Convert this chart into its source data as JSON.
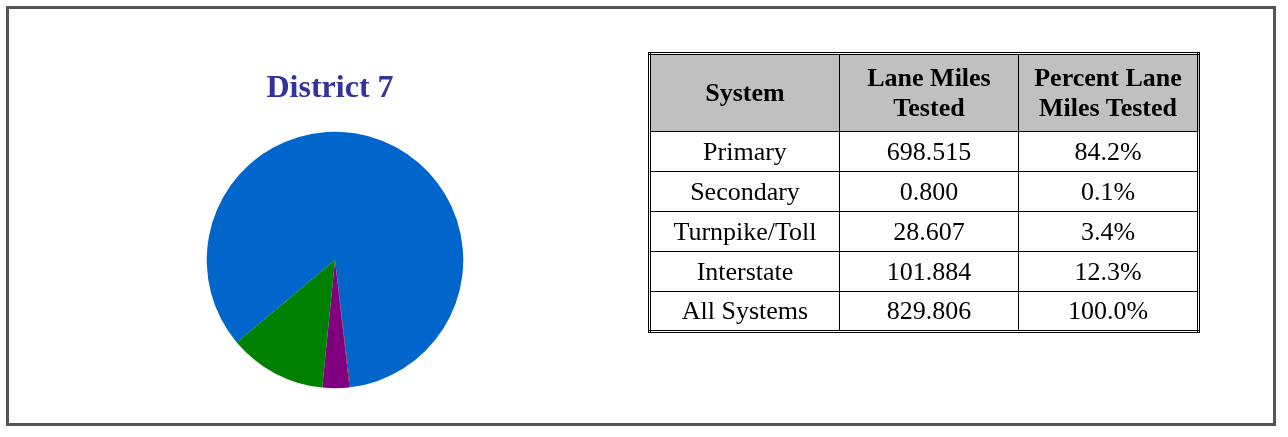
{
  "chart_data": [
    {
      "type": "pie",
      "title": "District 7",
      "categories": [
        null,
        null,
        null,
        null
      ],
      "values": [
        84.2,
        0.1,
        3.4,
        12.3
      ],
      "colors": [
        "#0066cc",
        "#800000",
        "#800080",
        "#008000"
      ]
    },
    {
      "type": "other",
      "annotations": [
        "System",
        "Lane Miles Tested",
        "Percent Lane Miles Tested",
        "Primary",
        "698.515",
        "84.2%",
        "Secondary",
        "0.800",
        "0.1%",
        "Turnpike/Toll",
        "28.607",
        "3.4%",
        "Interstate",
        "101.884",
        "12.3%",
        "All Systems",
        "829.806",
        "100.0%"
      ]
    }
  ]
}
